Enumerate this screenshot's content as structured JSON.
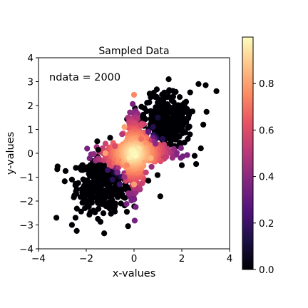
{
  "chart_data": {
    "type": "scatter",
    "title": "Sampled Data",
    "xlabel": "x-values",
    "ylabel": "y-values",
    "xlim": [
      -4,
      4
    ],
    "ylim": [
      -4,
      4
    ],
    "xticks": [
      "−4",
      "−2",
      "0",
      "2",
      "4"
    ],
    "yticks": [
      "−4",
      "−3",
      "−2",
      "−1",
      "0",
      "1",
      "2",
      "3",
      "4"
    ],
    "annotation": "ndata = 2000",
    "colormap": "magma",
    "color_range": [
      0.0,
      1.0
    ],
    "colorbar_ticks": [
      "0.0",
      "0.2",
      "0.4",
      "0.6",
      "0.8"
    ],
    "grid": false,
    "description_of_data": "2000 points; mixture: an isotropic cross-shaped cluster near origin (high value) and two elongated lobes near (1.3,1.3) and (-1.3,-1.3) (low value)",
    "points": [
      {
        "x": 3.45,
        "y": 2.6,
        "v": 0.0
      },
      {
        "x": 2.7,
        "y": 2.9,
        "v": 0.0
      },
      {
        "x": 2.35,
        "y": 2.55,
        "v": 0.0
      },
      {
        "x": 3.0,
        "y": 2.85,
        "v": 0.0
      },
      {
        "x": 1.45,
        "y": 3.1,
        "v": 0.0
      },
      {
        "x": 2.9,
        "y": 1.2,
        "v": 0.0
      },
      {
        "x": 2.6,
        "y": -0.45,
        "v": 0.0
      },
      {
        "x": 2.0,
        "y": -0.5,
        "v": 0.0
      },
      {
        "x": 1.1,
        "y": -1.8,
        "v": 0.0
      },
      {
        "x": 0.6,
        "y": -1.15,
        "v": 0.0
      },
      {
        "x": -1.25,
        "y": -3.35,
        "v": 0.0
      },
      {
        "x": -2.45,
        "y": -2.7,
        "v": 0.0
      },
      {
        "x": -2.4,
        "y": -3.25,
        "v": 0.0
      },
      {
        "x": -3.2,
        "y": -0.55,
        "v": 0.0
      },
      {
        "x": -3.25,
        "y": -2.7,
        "v": 0.0
      },
      {
        "x": -2.6,
        "y": -3.0,
        "v": 0.0
      },
      {
        "x": -0.3,
        "y": -2.45,
        "v": 0.0
      },
      {
        "x": -0.25,
        "y": -3.05,
        "v": 0.0
      },
      {
        "x": -0.55,
        "y": -2.1,
        "v": 0.0
      },
      {
        "x": -1.5,
        "y": 0.15,
        "v": 0.0
      },
      {
        "x": -1.0,
        "y": 0.65,
        "v": 0.0
      },
      {
        "x": 0.45,
        "y": 1.45,
        "v": 0.0
      },
      {
        "x": 0.7,
        "y": 2.35,
        "v": 0.0
      },
      {
        "x": 1.4,
        "y": 2.35,
        "v": 0.0
      },
      {
        "x": 0.9,
        "y": 2.35,
        "v": 0.0
      },
      {
        "x": 1.3,
        "y": 1.1,
        "v": 0.0
      },
      {
        "x": 1.8,
        "y": 1.45,
        "v": 0.0
      },
      {
        "x": 1.5,
        "y": 0.8,
        "v": 0.0
      },
      {
        "x": 1.9,
        "y": 0.7,
        "v": 0.0
      },
      {
        "x": 2.3,
        "y": 1.6,
        "v": 0.0
      },
      {
        "x": -1.3,
        "y": -1.1,
        "v": 0.0
      },
      {
        "x": -1.6,
        "y": -1.5,
        "v": 0.0
      },
      {
        "x": -1.9,
        "y": -1.3,
        "v": 0.0
      },
      {
        "x": -1.2,
        "y": -1.8,
        "v": 0.0
      },
      {
        "x": -0.8,
        "y": -1.6,
        "v": 0.0
      },
      {
        "x": -2.1,
        "y": -2.0,
        "v": 0.0
      },
      {
        "x": -1.7,
        "y": -2.4,
        "v": 0.0
      },
      {
        "x": -2.6,
        "y": -1.1,
        "v": 0.0
      },
      {
        "x": -1.0,
        "y": -2.2,
        "v": 0.0
      },
      {
        "x": -2.2,
        "y": -0.7,
        "v": 0.0
      },
      {
        "x": 1.0,
        "y": 1.5,
        "v": 0.1
      },
      {
        "x": 0.8,
        "y": 1.1,
        "v": 0.15
      },
      {
        "x": 1.2,
        "y": 0.6,
        "v": 0.15
      },
      {
        "x": -0.9,
        "y": -1.1,
        "v": 0.15
      },
      {
        "x": -1.1,
        "y": -0.7,
        "v": 0.2
      },
      {
        "x": -0.6,
        "y": -1.3,
        "v": 0.2
      },
      {
        "x": 0.6,
        "y": 0.9,
        "v": 0.3
      },
      {
        "x": -0.7,
        "y": -0.8,
        "v": 0.35
      },
      {
        "x": 0.9,
        "y": 0.4,
        "v": 0.4
      },
      {
        "x": -0.4,
        "y": -1.0,
        "v": 0.45
      },
      {
        "x": -0.5,
        "y": 0.8,
        "v": 0.5
      },
      {
        "x": 0.5,
        "y": -0.8,
        "v": 0.55
      },
      {
        "x": -0.8,
        "y": 0.3,
        "v": 0.6
      },
      {
        "x": 0.3,
        "y": 0.6,
        "v": 0.7
      },
      {
        "x": -0.3,
        "y": -0.5,
        "v": 0.75
      },
      {
        "x": 0.0,
        "y": 2.45,
        "v": 0.75
      },
      {
        "x": -0.4,
        "y": 1.1,
        "v": 0.8
      },
      {
        "x": 0.7,
        "y": -0.2,
        "v": 0.85
      },
      {
        "x": -1.2,
        "y": 0.0,
        "v": 0.8
      },
      {
        "x": 0.0,
        "y": -1.3,
        "v": 0.8
      },
      {
        "x": 0.2,
        "y": 0.2,
        "v": 0.95
      },
      {
        "x": -0.1,
        "y": 0.1,
        "v": 0.98
      },
      {
        "x": 0.0,
        "y": 0.0,
        "v": 0.99
      }
    ]
  }
}
